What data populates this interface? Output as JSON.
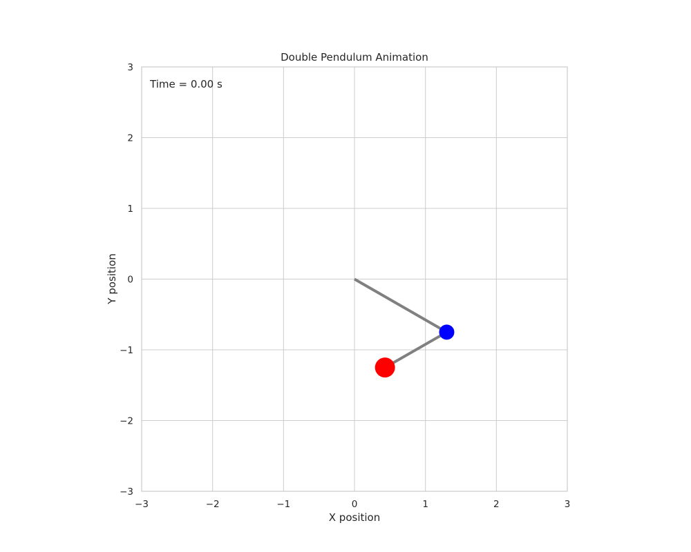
{
  "chart_data": {
    "type": "scatter",
    "title": "Double Pendulum Animation",
    "xlabel": "X position",
    "ylabel": "Y position",
    "xlim": [
      -3,
      3
    ],
    "ylim": [
      -3,
      3
    ],
    "x_ticks": [
      -3,
      -2,
      -1,
      0,
      1,
      2,
      3
    ],
    "y_ticks": [
      -3,
      -2,
      -1,
      0,
      1,
      2,
      3
    ],
    "x_tick_labels": [
      "−3",
      "−2",
      "−1",
      "0",
      "1",
      "2",
      "3"
    ],
    "y_tick_labels": [
      "−3",
      "−2",
      "−1",
      "0",
      "1",
      "2",
      "3"
    ],
    "grid": true,
    "annotation": "Time = 0.00 s",
    "pivot": {
      "x": 0,
      "y": 0
    },
    "rod_line": {
      "color": "#808080",
      "x": [
        0,
        1.3,
        0.43
      ],
      "y": [
        0,
        -0.75,
        -1.25
      ]
    },
    "bobs": [
      {
        "x": 1.3,
        "y": -0.75,
        "color": "#0000ff",
        "size": "small"
      },
      {
        "x": 0.43,
        "y": -1.25,
        "color": "#ff0000",
        "size": "large"
      }
    ],
    "colors": {
      "grid": "#cccccc",
      "frame": "#cccccc",
      "text": "#262626",
      "rod": "#808080"
    }
  }
}
